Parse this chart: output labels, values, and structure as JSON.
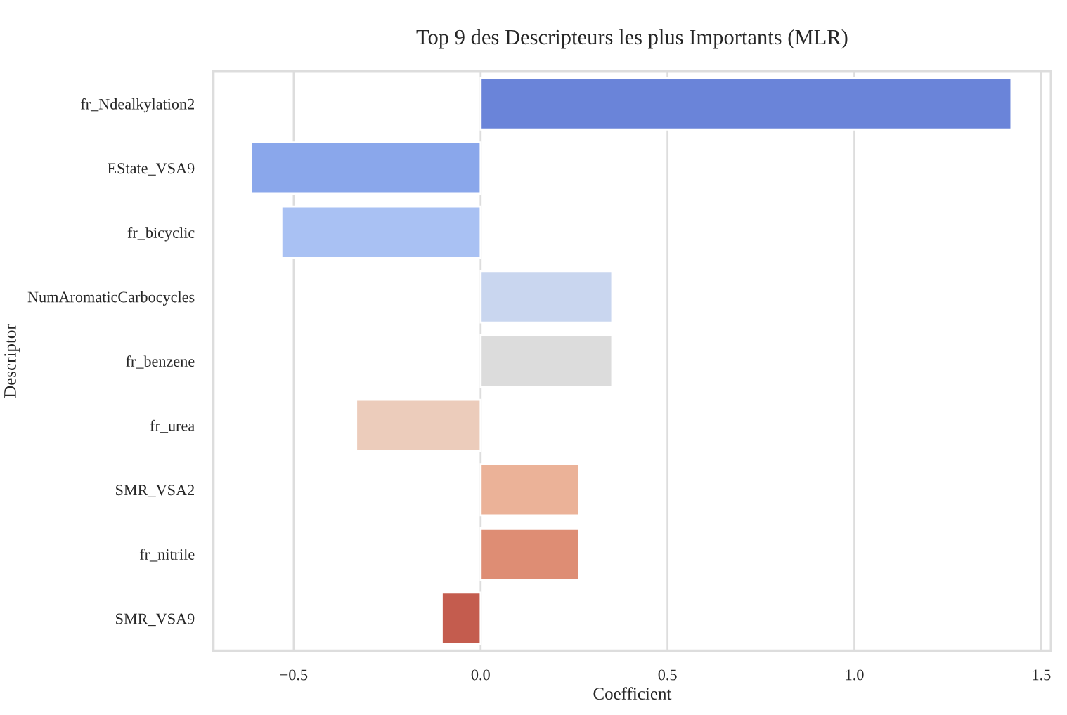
{
  "chart_data": {
    "type": "bar",
    "orientation": "horizontal",
    "title": "Top 9 des Descripteurs les plus Importants (MLR)",
    "xlabel": "Coefficient",
    "ylabel": "Descriptor",
    "categories": [
      "fr_Ndealkylation2",
      "EState_VSA9",
      "fr_bicyclic",
      "NumAromaticCarbocycles",
      "fr_benzene",
      "fr_urea",
      "SMR_VSA2",
      "fr_nitrile",
      "SMR_VSA9"
    ],
    "values": [
      1.42,
      -0.615,
      -0.533,
      0.352,
      0.352,
      -0.333,
      0.263,
      0.263,
      -0.104
    ],
    "colors": [
      "#6a84d9",
      "#8aa7eb",
      "#a9c1f3",
      "#c9d6ef",
      "#dcdcdc",
      "#ecccbb",
      "#ebb298",
      "#de8d74",
      "#c45c4e"
    ],
    "xlim": [
      -0.715,
      1.526
    ],
    "xticks": [
      {
        "value": -0.5,
        "label": "−0.5"
      },
      {
        "value": 0.0,
        "label": "0.0"
      },
      {
        "value": 0.5,
        "label": "0.5"
      },
      {
        "value": 1.0,
        "label": "1.0"
      },
      {
        "value": 1.5,
        "label": "1.5"
      }
    ],
    "grid": "x"
  }
}
